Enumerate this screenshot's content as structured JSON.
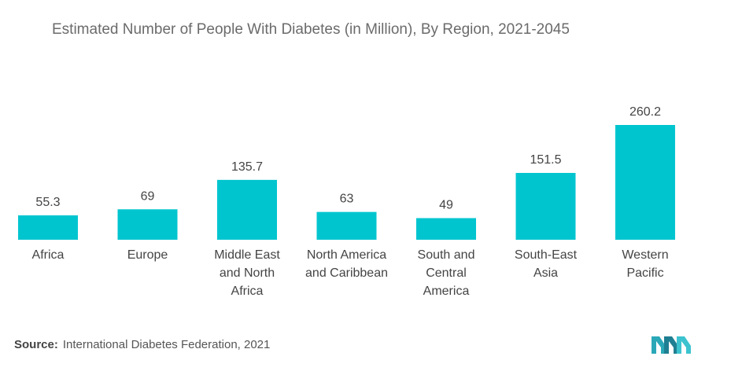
{
  "chart_data": {
    "type": "bar",
    "title": "Estimated Number of People With Diabetes (in Million), By Region, 2021-2045",
    "categories": [
      [
        "Africa"
      ],
      [
        "Europe"
      ],
      [
        "Middle East",
        "and North",
        "Africa"
      ],
      [
        "North America",
        "and Caribbean"
      ],
      [
        "South and",
        "Central",
        "America"
      ],
      [
        "South-East",
        "Asia"
      ],
      [
        "Western",
        "Pacific"
      ]
    ],
    "values": [
      55.3,
      69,
      135.7,
      63,
      49,
      151.5,
      260.2
    ],
    "value_labels": [
      "55.3",
      "69",
      "135.7",
      "63",
      "49",
      "151.5",
      "260.2"
    ],
    "xlabel": "",
    "ylabel": "",
    "ylim": [
      0,
      260.2
    ],
    "grid": false,
    "bar_color": "#00c5cf"
  },
  "source": {
    "prefix": "Source:",
    "text": "International Diabetes Federation, 2021"
  },
  "logo": {
    "icon": "mordor-intelligence-logo-icon",
    "color": "#2aa8b8"
  }
}
